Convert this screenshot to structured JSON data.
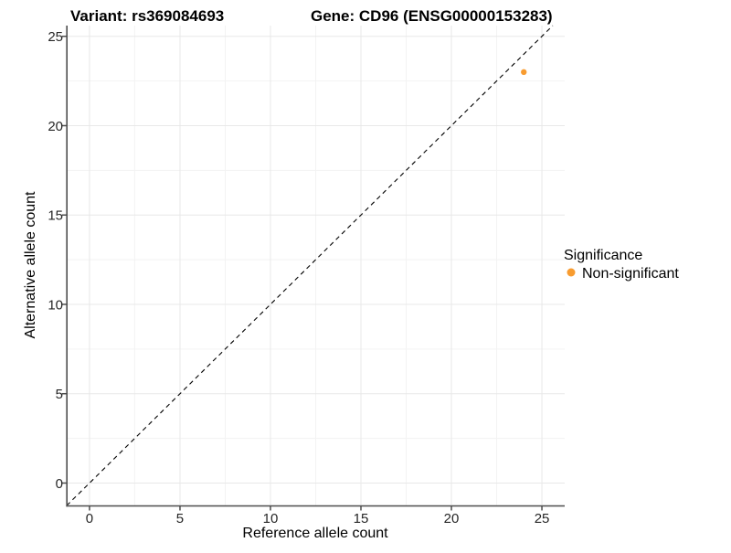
{
  "chart_data": {
    "type": "scatter",
    "title_left": "Variant: rs369084693",
    "title_right": "Gene: CD96 (ENSG00000153283)",
    "xlabel": "Reference allele count",
    "ylabel": "Alternative allele count",
    "xlim": [
      -1.26,
      26.26
    ],
    "ylim": [
      -1.28,
      25.6
    ],
    "x_ticks": [
      0,
      5,
      10,
      15,
      20,
      25
    ],
    "y_ticks": [
      0,
      5,
      10,
      15,
      20,
      25
    ],
    "grid": true,
    "grid_major_color": "#e8e8e8",
    "grid_minor_color": "#f3f3f3",
    "axis_line_color": "#4d4d4d",
    "series": [
      {
        "name": "Non-significant",
        "color": "#F89C30",
        "points": [
          {
            "x": 24,
            "y": 23
          }
        ]
      }
    ],
    "reference_line": {
      "type": "identity y=x",
      "style": "dashed",
      "color": "#000000"
    },
    "legend": {
      "title": "Significance",
      "position": "right"
    }
  }
}
